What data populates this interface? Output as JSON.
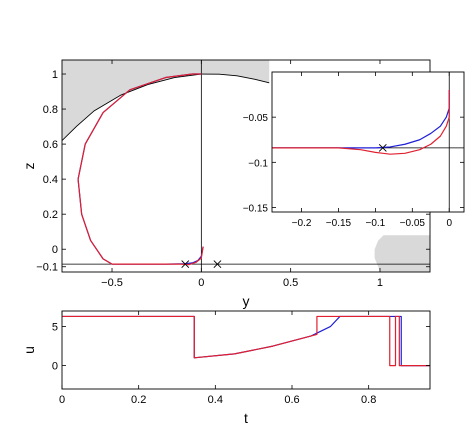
{
  "colors": {
    "background": "#ffffff",
    "shade": "#d9d9d9",
    "blue": "#1f1fd6",
    "red": "#e0202e",
    "black": "#000000"
  },
  "chart_data": [
    {
      "id": "top",
      "type": "line",
      "xlabel": "y",
      "ylabel": "z",
      "xlim": [
        -0.78,
        1.28
      ],
      "ylim": [
        -0.13,
        1.08
      ],
      "xticks": [
        -0.5,
        0,
        0.5,
        1
      ],
      "xtick_labels": [
        "−0.5",
        "0",
        "0.5",
        "1"
      ],
      "yticks": [
        -0.1,
        0,
        0.2,
        0.4,
        0.6,
        0.8,
        1
      ],
      "ytick_labels": [
        "−0.1",
        "0",
        "0.2",
        "0.4",
        "0.6",
        "0.8",
        "1"
      ],
      "grid": false,
      "markers": [
        {
          "x": -0.09,
          "y": -0.085
        },
        {
          "x": 0.09,
          "y": -0.085
        }
      ],
      "series": [
        {
          "color": "blue",
          "points": [
            [
              0.01,
              0.015
            ],
            [
              0,
              -0.04
            ],
            [
              -0.02,
              -0.065
            ],
            [
              -0.05,
              -0.078
            ],
            [
              -0.09,
              -0.083
            ],
            [
              -0.2,
              -0.085
            ],
            [
              -0.4,
              -0.085
            ],
            [
              -0.5,
              -0.085
            ],
            [
              -0.55,
              -0.055
            ],
            [
              -0.62,
              0.05
            ],
            [
              -0.67,
              0.2
            ],
            [
              -0.69,
              0.4
            ],
            [
              -0.65,
              0.6
            ],
            [
              -0.55,
              0.78
            ],
            [
              -0.4,
              0.91
            ],
            [
              -0.2,
              0.98
            ],
            [
              -0.05,
              1.0
            ],
            [
              0,
              1.0
            ]
          ]
        },
        {
          "color": "red",
          "points": [
            [
              0.01,
              0.015
            ],
            [
              0,
              -0.05
            ],
            [
              -0.03,
              -0.075
            ],
            [
              -0.07,
              -0.088
            ],
            [
              -0.12,
              -0.085
            ],
            [
              -0.2,
              -0.085
            ],
            [
              -0.4,
              -0.085
            ],
            [
              -0.5,
              -0.085
            ],
            [
              -0.55,
              -0.055
            ],
            [
              -0.62,
              0.05
            ],
            [
              -0.67,
              0.2
            ],
            [
              -0.69,
              0.4
            ],
            [
              -0.65,
              0.6
            ],
            [
              -0.55,
              0.78
            ],
            [
              -0.4,
              0.91
            ],
            [
              -0.2,
              0.98
            ],
            [
              -0.05,
              1.0
            ],
            [
              0,
              1.0
            ]
          ]
        }
      ],
      "black_curves": [
        [
          [
            -0.78,
            0.62
          ],
          [
            -0.7,
            0.7
          ],
          [
            -0.6,
            0.79
          ],
          [
            -0.45,
            0.88
          ],
          [
            -0.3,
            0.94
          ],
          [
            -0.15,
            0.98
          ],
          [
            0,
            1.0
          ]
        ],
        [
          [
            0,
            1.0
          ],
          [
            0.1,
            0.999
          ],
          [
            0.2,
            0.99
          ],
          [
            0.3,
            0.97
          ],
          [
            0.38,
            0.95
          ]
        ]
      ],
      "shaded_regions": [
        [
          [
            -0.78,
            0.62
          ],
          [
            -0.7,
            0.7
          ],
          [
            -0.6,
            0.79
          ],
          [
            -0.45,
            0.88
          ],
          [
            -0.3,
            0.94
          ],
          [
            -0.15,
            0.98
          ],
          [
            0,
            1.0
          ],
          [
            0,
            1.08
          ],
          [
            -0.78,
            1.08
          ]
        ],
        [
          [
            0,
            1.0
          ],
          [
            0.1,
            0.999
          ],
          [
            0.2,
            0.99
          ],
          [
            0.3,
            0.97
          ],
          [
            0.38,
            0.95
          ],
          [
            0.38,
            1.08
          ],
          [
            0,
            1.08
          ]
        ],
        [
          [
            1.0,
            -0.13
          ],
          [
            0.99,
            -0.1
          ],
          [
            0.97,
            -0.05
          ],
          [
            0.97,
            0.0
          ],
          [
            0.99,
            0.05
          ],
          [
            1.02,
            0.08
          ],
          [
            1.28,
            0.08
          ],
          [
            1.28,
            -0.13
          ]
        ]
      ],
      "hlines": [
        -0.085
      ],
      "vlines": [
        0
      ]
    },
    {
      "id": "inset",
      "type": "line",
      "xlim": [
        -0.24,
        0.02
      ],
      "ylim": [
        -0.155,
        0.0
      ],
      "xticks": [
        -0.2,
        -0.15,
        -0.1,
        -0.05,
        0
      ],
      "xtick_labels": [
        "−0.2",
        "−0.15",
        "−0.1",
        "−0.05",
        "0"
      ],
      "yticks": [
        -0.15,
        -0.1,
        -0.05
      ],
      "ytick_labels": [
        "−0.15",
        "−0.1",
        "−0.05"
      ],
      "grid": false,
      "markers": [
        {
          "x": -0.09,
          "y": -0.084
        }
      ],
      "series": [
        {
          "color": "blue",
          "points": [
            [
              -0.24,
              -0.084
            ],
            [
              -0.15,
              -0.084
            ],
            [
              -0.1,
              -0.084
            ],
            [
              -0.08,
              -0.083
            ],
            [
              -0.06,
              -0.08
            ],
            [
              -0.04,
              -0.075
            ],
            [
              -0.025,
              -0.068
            ],
            [
              -0.012,
              -0.06
            ],
            [
              -0.004,
              -0.05
            ],
            [
              0,
              -0.04
            ],
            [
              0,
              -0.02
            ]
          ]
        },
        {
          "color": "red",
          "points": [
            [
              -0.24,
              -0.084
            ],
            [
              -0.15,
              -0.084
            ],
            [
              -0.12,
              -0.086
            ],
            [
              -0.1,
              -0.089
            ],
            [
              -0.08,
              -0.091
            ],
            [
              -0.06,
              -0.09
            ],
            [
              -0.04,
              -0.086
            ],
            [
              -0.025,
              -0.08
            ],
            [
              -0.012,
              -0.071
            ],
            [
              -0.004,
              -0.06
            ],
            [
              0,
              -0.05
            ],
            [
              0,
              -0.02
            ]
          ]
        }
      ],
      "hlines": [
        -0.084
      ],
      "vlines": [
        0
      ]
    },
    {
      "id": "bottom",
      "type": "line",
      "xlabel": "t",
      "ylabel": "u",
      "xlim": [
        0,
        0.96
      ],
      "ylim": [
        -3,
        7
      ],
      "xticks": [
        0,
        0.2,
        0.4,
        0.6,
        0.8
      ],
      "xtick_labels": [
        "0",
        "0.2",
        "0.4",
        "0.6",
        "0.8"
      ],
      "yticks": [
        0,
        5
      ],
      "ytick_labels": [
        "0",
        "5"
      ],
      "grid": false,
      "series": [
        {
          "color": "blue",
          "points": [
            [
              0,
              6.3
            ],
            [
              0.345,
              6.3
            ],
            [
              0.345,
              1.0
            ],
            [
              0.45,
              1.5
            ],
            [
              0.55,
              2.5
            ],
            [
              0.65,
              3.8
            ],
            [
              0.7,
              5.0
            ],
            [
              0.725,
              6.3
            ],
            [
              0.862,
              6.3
            ],
            [
              0.862,
              6.3
            ],
            [
              0.885,
              6.3
            ],
            [
              0.885,
              0
            ],
            [
              0.96,
              0
            ]
          ]
        },
        {
          "color": "red",
          "points": [
            [
              0,
              6.3
            ],
            [
              0.345,
              6.3
            ],
            [
              0.345,
              1.0
            ],
            [
              0.45,
              1.5
            ],
            [
              0.55,
              2.5
            ],
            [
              0.65,
              3.8
            ],
            [
              0.665,
              4.0
            ],
            [
              0.665,
              6.3
            ],
            [
              0.855,
              6.3
            ],
            [
              0.855,
              0
            ],
            [
              0.87,
              0
            ],
            [
              0.87,
              6.3
            ],
            [
              0.88,
              6.3
            ],
            [
              0.88,
              0
            ],
            [
              0.96,
              0
            ]
          ]
        }
      ]
    }
  ]
}
